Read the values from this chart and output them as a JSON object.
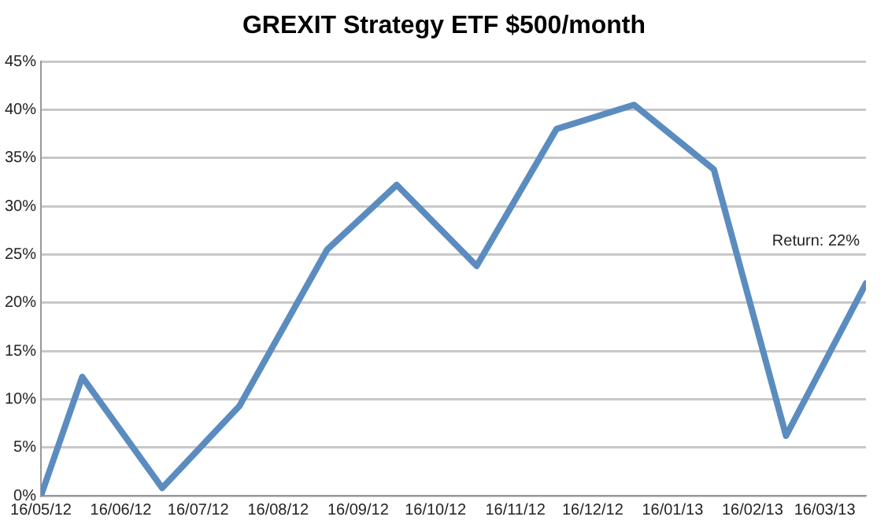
{
  "chart_data": {
    "type": "line",
    "title": "GREXIT Strategy ETF $500/month",
    "x": [
      "2012-05-16",
      "2012-06-01",
      "2012-07-02",
      "2012-08-01",
      "2012-09-04",
      "2012-10-01",
      "2012-11-01",
      "2012-12-02",
      "2013-01-01",
      "2013-02-01",
      "2013-03-01",
      "2013-04-01"
    ],
    "series": [
      {
        "color": "#5b8cc0",
        "values": [
          0,
          12.3,
          0.8,
          9.3,
          25.5,
          32.2,
          23.8,
          38,
          40.5,
          33.8,
          6.2,
          22
        ]
      }
    ],
    "xlim": [
      "2012-05-16",
      "2013-04-01"
    ],
    "xticks": [
      {
        "value": "2012-05-16",
        "label": "16/05/12"
      },
      {
        "value": "2012-06-16",
        "label": "16/06/12"
      },
      {
        "value": "2012-07-16",
        "label": "16/07/12"
      },
      {
        "value": "2012-08-16",
        "label": "16/08/12"
      },
      {
        "value": "2012-09-16",
        "label": "16/09/12"
      },
      {
        "value": "2012-10-16",
        "label": "16/10/12"
      },
      {
        "value": "2012-11-16",
        "label": "16/11/12"
      },
      {
        "value": "2012-12-16",
        "label": "16/12/12"
      },
      {
        "value": "2013-01-16",
        "label": "16/01/13"
      },
      {
        "value": "2013-02-16",
        "label": "16/02/13"
      },
      {
        "value": "2013-03-16",
        "label": "16/03/13"
      }
    ],
    "ylim": [
      0,
      45
    ],
    "yticks": [
      {
        "value": 0,
        "label": "0%"
      },
      {
        "value": 5,
        "label": "5%"
      },
      {
        "value": 10,
        "label": "10%"
      },
      {
        "value": 15,
        "label": "15%"
      },
      {
        "value": 20,
        "label": "20%"
      },
      {
        "value": 25,
        "label": "25%"
      },
      {
        "value": 30,
        "label": "30%"
      },
      {
        "value": 35,
        "label": "35%"
      },
      {
        "value": 40,
        "label": "40%"
      },
      {
        "value": 45,
        "label": "45%"
      }
    ],
    "grid": "y",
    "marker": "none",
    "line_style": "solid",
    "legend": false,
    "annotations": [
      {
        "text": "Return: 22%",
        "x": "2013-04-01",
        "y": 22
      }
    ]
  }
}
